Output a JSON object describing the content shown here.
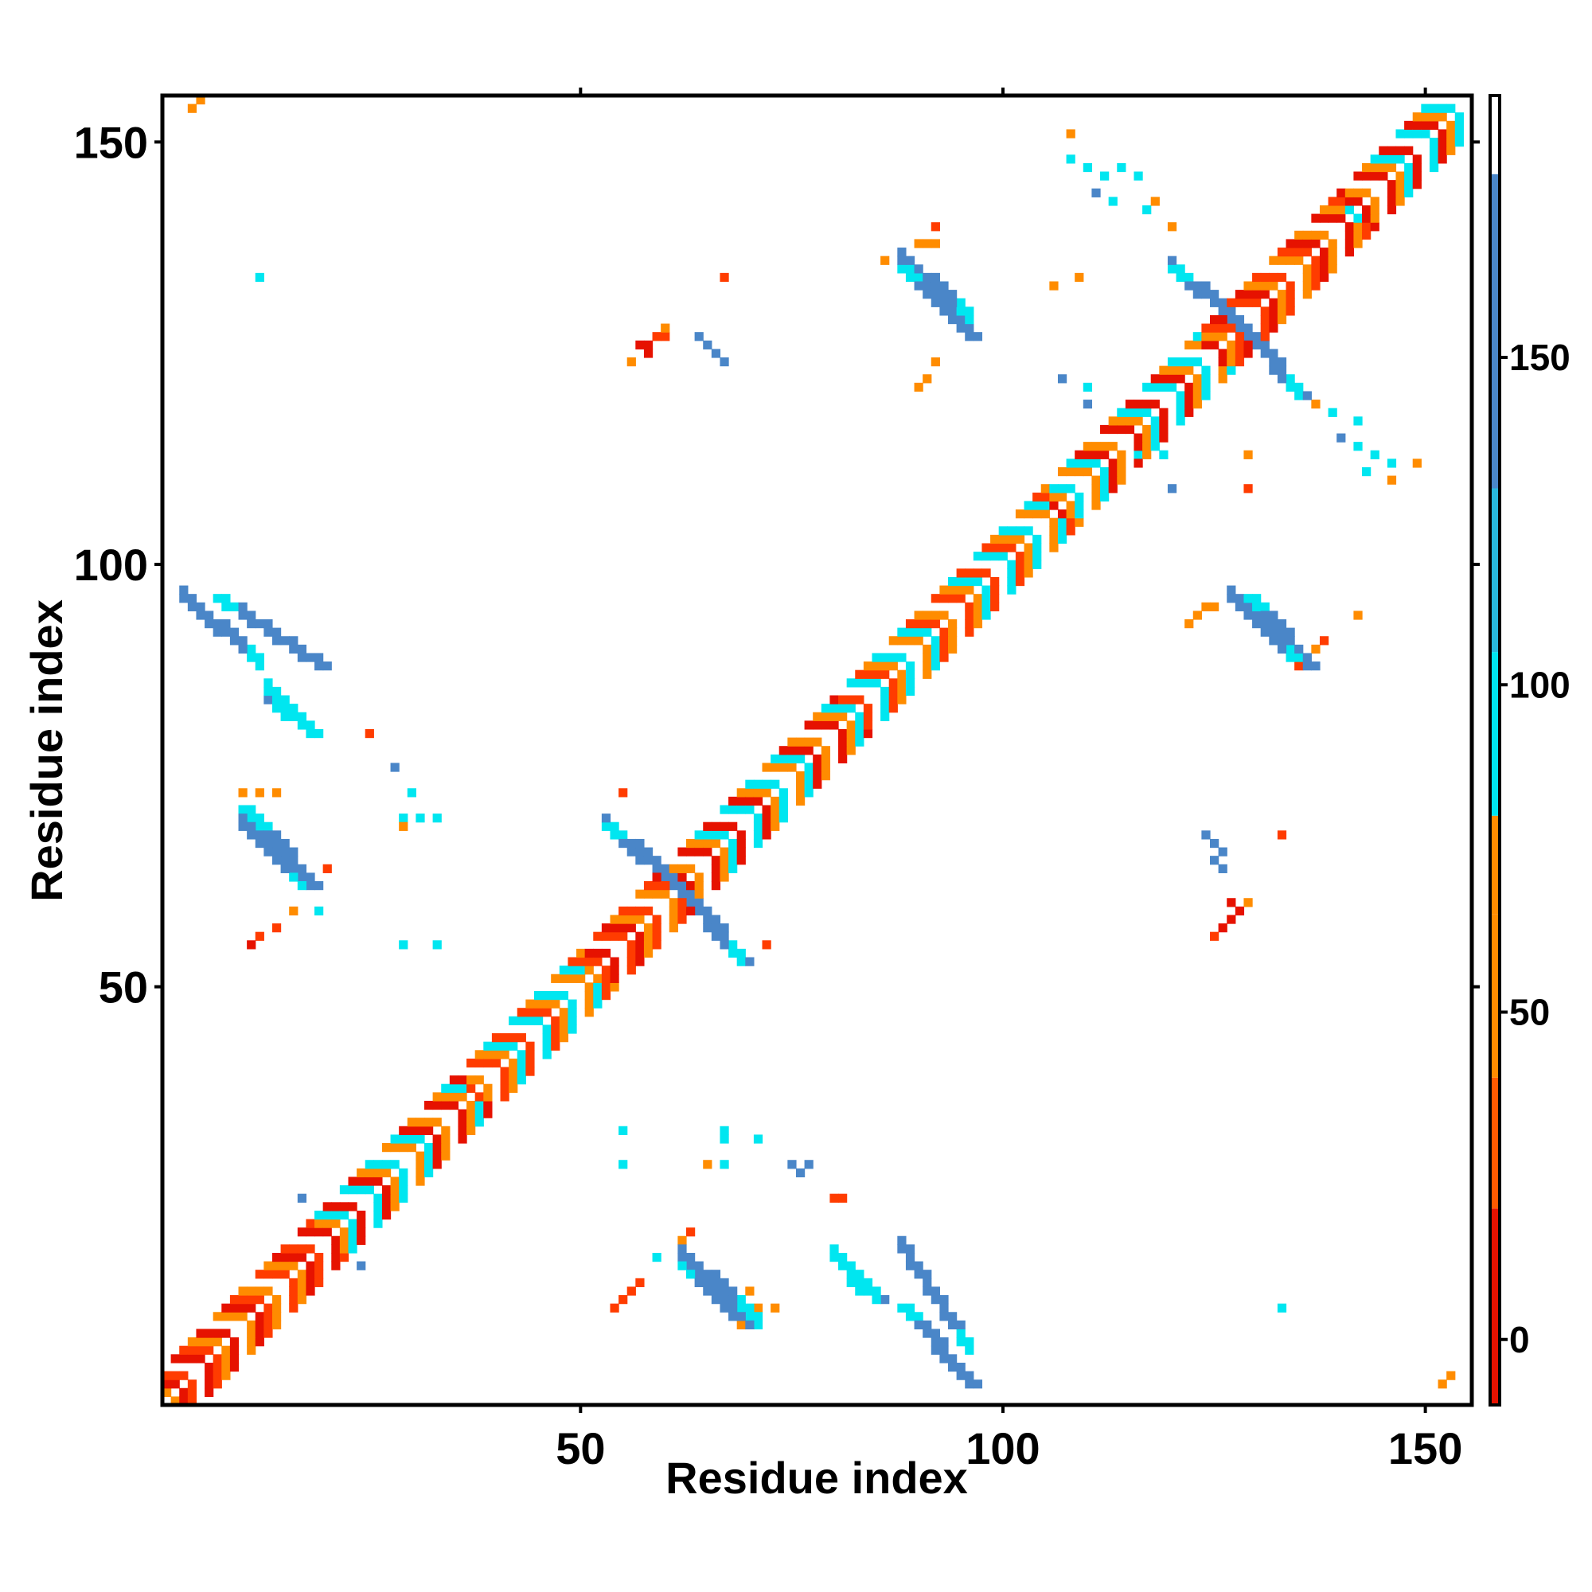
{
  "chart_data": {
    "type": "heatmap",
    "title": "",
    "xlabel": "Residue index",
    "ylabel": "Residue index",
    "xlim": [
      0.5,
      155.5
    ],
    "ylim": [
      0.5,
      155.5
    ],
    "x_ticks": [
      50,
      100,
      150
    ],
    "y_ticks": [
      50,
      100,
      150
    ],
    "x_tick_labels": [
      "50",
      "100",
      "150"
    ],
    "y_tick_labels": [
      "50",
      "100",
      "150"
    ],
    "grid": false,
    "legend": "right",
    "colorbar": {
      "ticks": [
        0,
        50,
        100,
        150
      ],
      "tick_labels": [
        "0",
        "50",
        "100",
        "150"
      ],
      "range": [
        -10,
        190
      ],
      "bands": [
        {
          "from": -10,
          "to": 20,
          "color": "#e61200"
        },
        {
          "from": 20,
          "to": 40,
          "color": "#ff5a00"
        },
        {
          "from": 40,
          "to": 65,
          "color": "#ff8c00"
        },
        {
          "from": 65,
          "to": 80,
          "color": "#ff8c00"
        },
        {
          "from": 80,
          "to": 105,
          "color": "#00e6f0"
        },
        {
          "from": 105,
          "to": 130,
          "color": "#29b8dc"
        },
        {
          "from": 130,
          "to": 178,
          "color": "#4a86c8"
        },
        {
          "from": 178,
          "to": 190,
          "color": "#ffffff"
        }
      ]
    },
    "colors": {
      "red": "#e61200",
      "red_orange": "#ff3c00",
      "orange": "#ff8c00",
      "cyan": "#00e6f0",
      "light_blue": "#29b8dc",
      "steel_blue": "#4a86c8"
    },
    "diagonal_band": {
      "from": 1,
      "to": 155,
      "segments": [
        {
          "from": 1,
          "to": 18,
          "colors": [
            "red",
            "red_orange",
            "orange"
          ]
        },
        {
          "from": 18,
          "to": 36,
          "colors": [
            "red",
            "orange",
            "cyan"
          ]
        },
        {
          "from": 36,
          "to": 50,
          "colors": [
            "orange",
            "cyan",
            "red_orange"
          ]
        },
        {
          "from": 50,
          "to": 63,
          "colors": [
            "red",
            "orange",
            "red_orange"
          ]
        },
        {
          "from": 63,
          "to": 80,
          "colors": [
            "red",
            "orange",
            "cyan"
          ]
        },
        {
          "from": 80,
          "to": 105,
          "colors": [
            "red_orange",
            "orange",
            "cyan"
          ]
        },
        {
          "from": 105,
          "to": 123,
          "colors": [
            "orange",
            "cyan",
            "red"
          ]
        },
        {
          "from": 123,
          "to": 140,
          "colors": [
            "red",
            "orange",
            "red_orange"
          ]
        },
        {
          "from": 140,
          "to": 155,
          "colors": [
            "orange",
            "cyan",
            "red"
          ]
        }
      ]
    },
    "strands": [
      {
        "x0": 7,
        "y0": 96,
        "x1": 19,
        "y1": 88,
        "color": "steel_blue",
        "w": 2
      },
      {
        "x0": 14,
        "y0": 83,
        "x1": 18,
        "y1": 80,
        "color": "cyan",
        "w": 2
      },
      {
        "x0": 11,
        "y0": 70,
        "x1": 18,
        "y1": 62,
        "color": "steel_blue",
        "w": 2
      },
      {
        "x0": 10,
        "y0": 71,
        "x1": 12,
        "y1": 69,
        "color": "cyan",
        "w": 2
      },
      {
        "x0": 53,
        "y0": 69,
        "x1": 62,
        "y1": 61,
        "color": "steel_blue",
        "w": 2
      },
      {
        "x0": 62,
        "y0": 61,
        "x1": 69,
        "y1": 53,
        "color": "steel_blue",
        "w": 2
      },
      {
        "x0": 62,
        "y0": 17,
        "x1": 69,
        "y1": 10,
        "color": "steel_blue",
        "w": 2
      },
      {
        "x0": 81,
        "y0": 17,
        "x1": 85,
        "y1": 13,
        "color": "cyan",
        "w": 2
      },
      {
        "x0": 88,
        "y0": 12,
        "x1": 96,
        "y1": 3,
        "color": "steel_blue",
        "w": 2
      },
      {
        "x0": 88,
        "y0": 135,
        "x1": 96,
        "y1": 127,
        "color": "steel_blue",
        "w": 2
      },
      {
        "x0": 120,
        "y0": 135,
        "x1": 128,
        "y1": 128,
        "color": "steel_blue",
        "w": 2
      },
      {
        "x0": 128,
        "y0": 128,
        "x1": 135,
        "y1": 120,
        "color": "steel_blue",
        "w": 2
      },
      {
        "x0": 129,
        "y0": 96,
        "x1": 136,
        "y1": 88,
        "color": "steel_blue",
        "w": 2
      }
    ],
    "contacts": [
      {
        "x": 4,
        "y": 154,
        "color": "orange"
      },
      {
        "x": 5,
        "y": 155,
        "color": "orange"
      },
      {
        "x": 12,
        "y": 134,
        "color": "cyan"
      },
      {
        "x": 13,
        "y": 84,
        "color": "steel_blue"
      },
      {
        "x": 25,
        "y": 80,
        "color": "red_orange"
      },
      {
        "x": 28,
        "y": 76,
        "color": "steel_blue"
      },
      {
        "x": 30,
        "y": 73,
        "color": "cyan"
      },
      {
        "x": 29,
        "y": 70,
        "color": "cyan"
      },
      {
        "x": 31,
        "y": 70,
        "color": "cyan"
      },
      {
        "x": 33,
        "y": 70,
        "color": "cyan"
      },
      {
        "x": 29,
        "y": 69,
        "color": "orange"
      },
      {
        "x": 10,
        "y": 73,
        "color": "orange"
      },
      {
        "x": 12,
        "y": 73,
        "color": "orange"
      },
      {
        "x": 14,
        "y": 73,
        "color": "orange"
      },
      {
        "x": 20,
        "y": 64,
        "color": "red_orange"
      },
      {
        "x": 19,
        "y": 59,
        "color": "cyan"
      },
      {
        "x": 16,
        "y": 59,
        "color": "orange"
      },
      {
        "x": 14,
        "y": 57,
        "color": "red_orange"
      },
      {
        "x": 12,
        "y": 56,
        "color": "red_orange"
      },
      {
        "x": 11,
        "y": 55,
        "color": "red"
      },
      {
        "x": 29,
        "y": 55,
        "color": "cyan"
      },
      {
        "x": 33,
        "y": 55,
        "color": "cyan"
      },
      {
        "x": 55,
        "y": 73,
        "color": "red_orange"
      },
      {
        "x": 72,
        "y": 55,
        "color": "red_orange"
      },
      {
        "x": 57,
        "y": 126,
        "color": "red"
      },
      {
        "x": 58,
        "y": 126,
        "color": "red"
      },
      {
        "x": 59,
        "y": 127,
        "color": "red_orange"
      },
      {
        "x": 60,
        "y": 127,
        "color": "red_orange"
      },
      {
        "x": 60,
        "y": 128,
        "color": "orange"
      },
      {
        "x": 56,
        "y": 124,
        "color": "orange"
      },
      {
        "x": 58,
        "y": 125,
        "color": "red"
      },
      {
        "x": 64,
        "y": 127,
        "color": "steel_blue"
      },
      {
        "x": 65,
        "y": 126,
        "color": "steel_blue"
      },
      {
        "x": 66,
        "y": 125,
        "color": "steel_blue"
      },
      {
        "x": 67,
        "y": 124,
        "color": "steel_blue"
      },
      {
        "x": 67,
        "y": 134,
        "color": "red_orange"
      },
      {
        "x": 92,
        "y": 140,
        "color": "red_orange"
      },
      {
        "x": 90,
        "y": 138,
        "color": "orange"
      },
      {
        "x": 91,
        "y": 138,
        "color": "orange"
      },
      {
        "x": 92,
        "y": 138,
        "color": "orange"
      },
      {
        "x": 86,
        "y": 136,
        "color": "orange"
      },
      {
        "x": 92,
        "y": 124,
        "color": "orange"
      },
      {
        "x": 91,
        "y": 122,
        "color": "orange"
      },
      {
        "x": 90,
        "y": 121,
        "color": "orange"
      },
      {
        "x": 108,
        "y": 151,
        "color": "orange"
      },
      {
        "x": 108,
        "y": 148,
        "color": "cyan"
      },
      {
        "x": 110,
        "y": 147,
        "color": "cyan"
      },
      {
        "x": 112,
        "y": 146,
        "color": "cyan"
      },
      {
        "x": 114,
        "y": 147,
        "color": "cyan"
      },
      {
        "x": 116,
        "y": 146,
        "color": "cyan"
      },
      {
        "x": 111,
        "y": 144,
        "color": "steel_blue"
      },
      {
        "x": 113,
        "y": 143,
        "color": "cyan"
      },
      {
        "x": 117,
        "y": 142,
        "color": "cyan"
      },
      {
        "x": 118,
        "y": 143,
        "color": "orange"
      },
      {
        "x": 120,
        "y": 140,
        "color": "orange"
      },
      {
        "x": 106,
        "y": 133,
        "color": "orange"
      },
      {
        "x": 109,
        "y": 134,
        "color": "orange"
      },
      {
        "x": 107,
        "y": 122,
        "color": "steel_blue"
      },
      {
        "x": 110,
        "y": 121,
        "color": "cyan"
      },
      {
        "x": 110,
        "y": 119,
        "color": "steel_blue"
      },
      {
        "x": 116,
        "y": 113,
        "color": "cyan"
      },
      {
        "x": 119,
        "y": 113,
        "color": "cyan"
      },
      {
        "x": 120,
        "y": 109,
        "color": "steel_blue"
      },
      {
        "x": 129,
        "y": 113,
        "color": "orange"
      },
      {
        "x": 129,
        "y": 109,
        "color": "red_orange"
      },
      {
        "x": 137,
        "y": 119,
        "color": "orange"
      },
      {
        "x": 139,
        "y": 118,
        "color": "cyan"
      },
      {
        "x": 142,
        "y": 117,
        "color": "cyan"
      },
      {
        "x": 140,
        "y": 115,
        "color": "steel_blue"
      },
      {
        "x": 142,
        "y": 114,
        "color": "cyan"
      },
      {
        "x": 144,
        "y": 113,
        "color": "cyan"
      },
      {
        "x": 146,
        "y": 112,
        "color": "cyan"
      },
      {
        "x": 143,
        "y": 111,
        "color": "cyan"
      },
      {
        "x": 149,
        "y": 112,
        "color": "orange"
      },
      {
        "x": 146,
        "y": 110,
        "color": "orange"
      },
      {
        "x": 122,
        "y": 93,
        "color": "orange"
      },
      {
        "x": 123,
        "y": 94,
        "color": "orange"
      },
      {
        "x": 124,
        "y": 95,
        "color": "orange"
      },
      {
        "x": 125,
        "y": 95,
        "color": "orange"
      },
      {
        "x": 137,
        "y": 90,
        "color": "orange"
      },
      {
        "x": 138,
        "y": 91,
        "color": "red_orange"
      },
      {
        "x": 142,
        "y": 94,
        "color": "orange"
      },
      {
        "x": 135,
        "y": 88,
        "color": "red_orange"
      },
      {
        "x": 124,
        "y": 68,
        "color": "steel_blue"
      },
      {
        "x": 125,
        "y": 67,
        "color": "steel_blue"
      },
      {
        "x": 126,
        "y": 66,
        "color": "steel_blue"
      },
      {
        "x": 125,
        "y": 65,
        "color": "steel_blue"
      },
      {
        "x": 126,
        "y": 64,
        "color": "steel_blue"
      },
      {
        "x": 133,
        "y": 68,
        "color": "red_orange"
      },
      {
        "x": 127,
        "y": 60,
        "color": "red"
      },
      {
        "x": 128,
        "y": 59,
        "color": "red"
      },
      {
        "x": 127,
        "y": 58,
        "color": "red"
      },
      {
        "x": 126,
        "y": 57,
        "color": "red"
      },
      {
        "x": 125,
        "y": 56,
        "color": "red_orange"
      },
      {
        "x": 129,
        "y": 60,
        "color": "orange"
      },
      {
        "x": 55,
        "y": 33,
        "color": "cyan"
      },
      {
        "x": 55,
        "y": 29,
        "color": "cyan"
      },
      {
        "x": 67,
        "y": 33,
        "color": "cyan"
      },
      {
        "x": 67,
        "y": 32,
        "color": "cyan"
      },
      {
        "x": 71,
        "y": 32,
        "color": "cyan"
      },
      {
        "x": 65,
        "y": 29,
        "color": "orange"
      },
      {
        "x": 67,
        "y": 29,
        "color": "cyan"
      },
      {
        "x": 75,
        "y": 29,
        "color": "steel_blue"
      },
      {
        "x": 76,
        "y": 28,
        "color": "steel_blue"
      },
      {
        "x": 77,
        "y": 29,
        "color": "steel_blue"
      },
      {
        "x": 80,
        "y": 25,
        "color": "red_orange"
      },
      {
        "x": 81,
        "y": 25,
        "color": "red_orange"
      },
      {
        "x": 63,
        "y": 21,
        "color": "red_orange"
      },
      {
        "x": 62,
        "y": 20,
        "color": "orange"
      },
      {
        "x": 59,
        "y": 18,
        "color": "cyan"
      },
      {
        "x": 57,
        "y": 15,
        "color": "red_orange"
      },
      {
        "x": 56,
        "y": 14,
        "color": "red_orange"
      },
      {
        "x": 55,
        "y": 13,
        "color": "red_orange"
      },
      {
        "x": 54,
        "y": 12,
        "color": "red_orange"
      },
      {
        "x": 70,
        "y": 14,
        "color": "orange"
      },
      {
        "x": 71,
        "y": 12,
        "color": "orange"
      },
      {
        "x": 73,
        "y": 12,
        "color": "orange"
      },
      {
        "x": 69,
        "y": 10,
        "color": "orange"
      },
      {
        "x": 86,
        "y": 13,
        "color": "steel_blue"
      },
      {
        "x": 17,
        "y": 25,
        "color": "steel_blue"
      },
      {
        "x": 24,
        "y": 17,
        "color": "steel_blue"
      },
      {
        "x": 133,
        "y": 12,
        "color": "cyan"
      },
      {
        "x": 153,
        "y": 4,
        "color": "orange"
      },
      {
        "x": 152,
        "y": 3,
        "color": "orange"
      }
    ]
  }
}
